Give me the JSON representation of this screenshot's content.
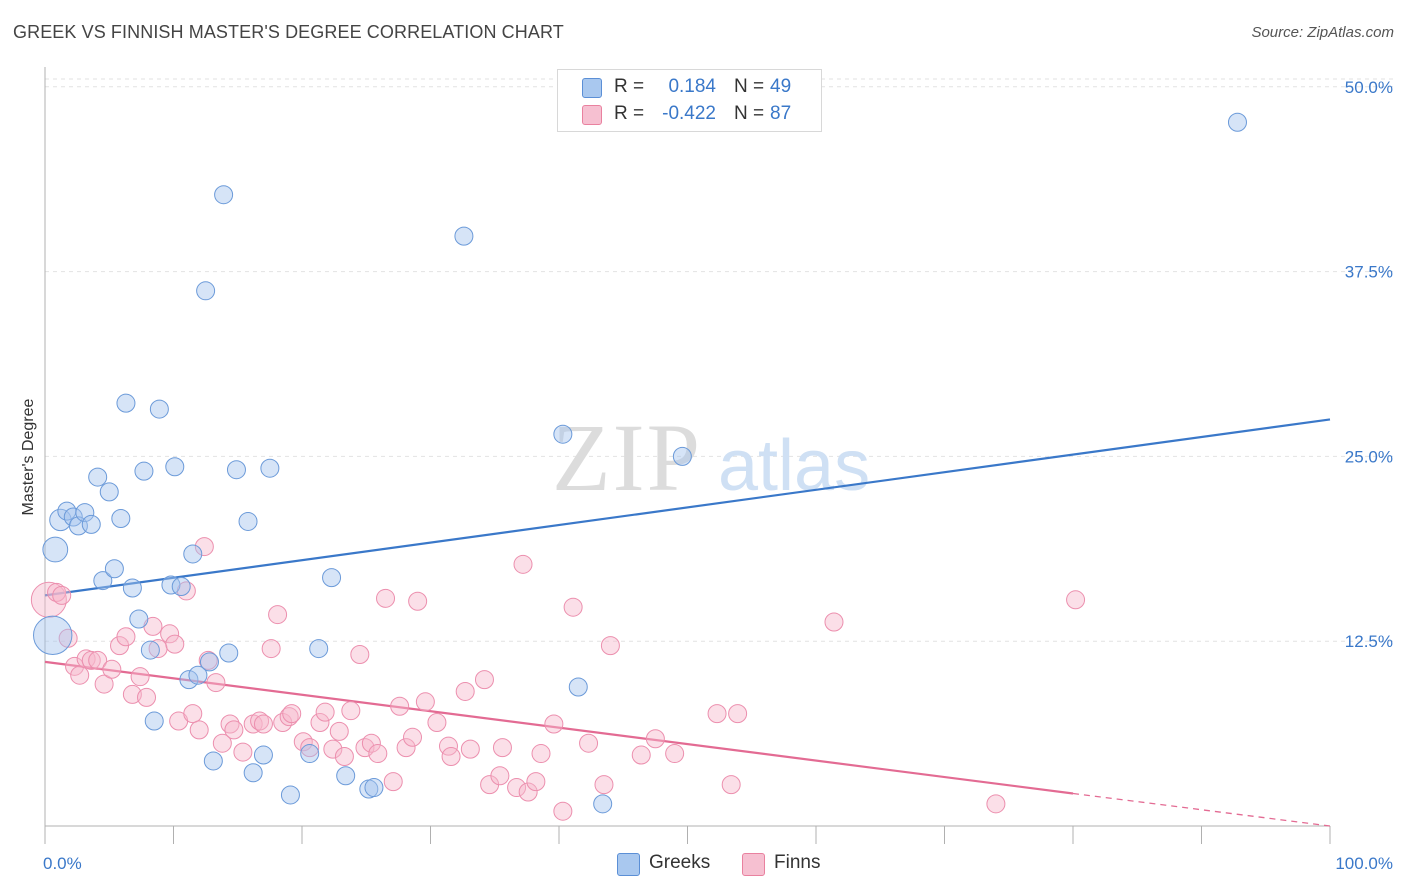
{
  "header": {
    "title": "GREEK VS FINNISH MASTER'S DEGREE CORRELATION CHART",
    "source": "Source: ZipAtlas.com"
  },
  "watermark": {
    "zip": "ZIP",
    "atlas": "atlas"
  },
  "legend_top": {
    "rows": [
      {
        "r_label": "R =",
        "r_value": "0.184",
        "n_label": "N =",
        "n_value": "49",
        "color": "#a9c8ef",
        "border": "#5b8fd6"
      },
      {
        "r_label": "R =",
        "r_value": "-0.422",
        "n_label": "N =",
        "n_value": "87",
        "color": "#f6c0d1",
        "border": "#e9819f"
      }
    ]
  },
  "legend_bottom": [
    {
      "label": "Greeks",
      "color": "#a9c8ef",
      "border": "#5b8fd6"
    },
    {
      "label": "Finns",
      "color": "#f6c0d1",
      "border": "#e9819f"
    }
  ],
  "colors": {
    "blue": "#3a78c9",
    "blue_fill": "rgba(164,196,238,0.45)",
    "blue_stroke": "#6b9ad9",
    "pink": "#e36b93",
    "pink_fill": "rgba(246,184,204,0.45)",
    "pink_stroke": "#ec8fae",
    "tick_label": "#3a78c9"
  },
  "chart_data": {
    "type": "scatter",
    "title": "GREEK VS FINNISH MASTER'S DEGREE CORRELATION CHART",
    "xlabel": "",
    "ylabel": "Master's Degree",
    "xlim": [
      0,
      100
    ],
    "ylim": [
      0,
      51
    ],
    "x_tick_labels": [
      "0.0%",
      "100.0%"
    ],
    "y_ticks": [
      12.5,
      25.0,
      37.5,
      50.0
    ],
    "y_tick_labels": [
      "12.5%",
      "25.0%",
      "37.5%",
      "50.0%"
    ],
    "grid": true,
    "legend_position": "top-center",
    "series": [
      {
        "name": "Greeks",
        "r": 0.184,
        "n": 49,
        "trend": {
          "x": [
            0,
            100
          ],
          "y": [
            15.6,
            27.5
          ],
          "style": "solid"
        },
        "points": [
          [
            0.6,
            12.9,
            22
          ],
          [
            0.8,
            18.7,
            14
          ],
          [
            1.2,
            20.7,
            12
          ],
          [
            1.7,
            21.3,
            10
          ],
          [
            2.2,
            20.9,
            10
          ],
          [
            2.6,
            20.3,
            10
          ],
          [
            3.1,
            21.2,
            10
          ],
          [
            3.6,
            20.4,
            10
          ],
          [
            4.1,
            23.6,
            10
          ],
          [
            4.5,
            16.6,
            10
          ],
          [
            5.0,
            22.6,
            10
          ],
          [
            5.4,
            17.4,
            10
          ],
          [
            5.9,
            20.8,
            10
          ],
          [
            6.3,
            28.6,
            10
          ],
          [
            6.8,
            16.1,
            10
          ],
          [
            7.3,
            14.0,
            10
          ],
          [
            7.7,
            24.0,
            10
          ],
          [
            8.2,
            11.9,
            10
          ],
          [
            8.5,
            7.1,
            10
          ],
          [
            8.9,
            28.2,
            10
          ],
          [
            9.8,
            16.3,
            10
          ],
          [
            10.1,
            24.3,
            10
          ],
          [
            10.6,
            16.2,
            10
          ],
          [
            11.2,
            9.9,
            10
          ],
          [
            11.5,
            18.4,
            10
          ],
          [
            11.9,
            10.2,
            10
          ],
          [
            12.5,
            36.2,
            10
          ],
          [
            12.8,
            11.1,
            10
          ],
          [
            13.1,
            4.4,
            10
          ],
          [
            13.9,
            42.7,
            10
          ],
          [
            14.3,
            11.7,
            10
          ],
          [
            14.9,
            24.1,
            10
          ],
          [
            15.8,
            20.6,
            10
          ],
          [
            16.2,
            3.6,
            10
          ],
          [
            17.0,
            4.8,
            10
          ],
          [
            17.5,
            24.2,
            10
          ],
          [
            19.1,
            2.1,
            10
          ],
          [
            20.6,
            4.9,
            10
          ],
          [
            21.3,
            12.0,
            10
          ],
          [
            22.3,
            16.8,
            10
          ],
          [
            23.4,
            3.4,
            10
          ],
          [
            25.2,
            2.5,
            10
          ],
          [
            25.6,
            2.6,
            10
          ],
          [
            32.6,
            39.9,
            10
          ],
          [
            40.3,
            26.5,
            10
          ],
          [
            41.5,
            9.4,
            10
          ],
          [
            43.4,
            1.5,
            10
          ],
          [
            49.6,
            25.0,
            10
          ],
          [
            92.8,
            47.6,
            10
          ]
        ]
      },
      {
        "name": "Finns",
        "r": -0.422,
        "n": 87,
        "trend": {
          "x": [
            0,
            80,
            100
          ],
          "y": [
            11.1,
            2.2,
            0.0
          ],
          "style": "solid-then-dashed"
        },
        "points": [
          [
            0.3,
            15.3,
            20
          ],
          [
            0.9,
            15.8,
            10
          ],
          [
            1.3,
            15.6,
            10
          ],
          [
            1.8,
            12.7,
            10
          ],
          [
            2.3,
            10.8,
            10
          ],
          [
            2.7,
            10.2,
            10
          ],
          [
            3.2,
            11.3,
            10
          ],
          [
            3.6,
            11.2,
            10
          ],
          [
            4.1,
            11.2,
            10
          ],
          [
            4.6,
            9.6,
            10
          ],
          [
            5.2,
            10.6,
            10
          ],
          [
            5.8,
            12.2,
            10
          ],
          [
            6.3,
            12.8,
            10
          ],
          [
            6.8,
            8.9,
            10
          ],
          [
            7.4,
            10.1,
            10
          ],
          [
            7.9,
            8.7,
            10
          ],
          [
            8.4,
            13.5,
            10
          ],
          [
            8.8,
            12.0,
            10
          ],
          [
            9.7,
            13.0,
            10
          ],
          [
            10.1,
            12.3,
            10
          ],
          [
            10.4,
            7.1,
            10
          ],
          [
            11.0,
            15.9,
            10
          ],
          [
            11.5,
            7.6,
            10
          ],
          [
            12.0,
            6.5,
            10
          ],
          [
            12.4,
            18.9,
            10
          ],
          [
            12.7,
            11.2,
            10
          ],
          [
            13.3,
            9.7,
            10
          ],
          [
            13.8,
            5.6,
            10
          ],
          [
            14.4,
            6.9,
            10
          ],
          [
            14.7,
            6.5,
            10
          ],
          [
            15.4,
            5.0,
            10
          ],
          [
            16.2,
            6.9,
            10
          ],
          [
            16.7,
            7.1,
            10
          ],
          [
            17.0,
            6.9,
            10
          ],
          [
            17.6,
            12.0,
            10
          ],
          [
            18.1,
            14.3,
            10
          ],
          [
            18.5,
            7.0,
            10
          ],
          [
            19.0,
            7.4,
            10
          ],
          [
            19.2,
            7.6,
            10
          ],
          [
            20.1,
            5.7,
            10
          ],
          [
            20.6,
            5.3,
            10
          ],
          [
            21.4,
            7.0,
            10
          ],
          [
            21.8,
            7.7,
            10
          ],
          [
            22.4,
            5.2,
            10
          ],
          [
            22.9,
            6.4,
            10
          ],
          [
            23.3,
            4.7,
            10
          ],
          [
            23.8,
            7.8,
            10
          ],
          [
            24.5,
            11.6,
            10
          ],
          [
            24.9,
            5.3,
            10
          ],
          [
            25.4,
            5.6,
            10
          ],
          [
            25.9,
            4.9,
            10
          ],
          [
            26.5,
            15.4,
            10
          ],
          [
            27.1,
            3.0,
            10
          ],
          [
            27.6,
            8.1,
            10
          ],
          [
            28.1,
            5.3,
            10
          ],
          [
            28.6,
            6.0,
            10
          ],
          [
            29.0,
            15.2,
            10
          ],
          [
            29.6,
            8.4,
            10
          ],
          [
            30.5,
            7.0,
            10
          ],
          [
            31.4,
            5.4,
            10
          ],
          [
            31.6,
            4.7,
            10
          ],
          [
            32.7,
            9.1,
            10
          ],
          [
            33.1,
            5.2,
            10
          ],
          [
            34.2,
            9.9,
            10
          ],
          [
            34.6,
            2.8,
            10
          ],
          [
            35.4,
            3.4,
            10
          ],
          [
            35.6,
            5.3,
            10
          ],
          [
            36.7,
            2.6,
            10
          ],
          [
            37.2,
            17.7,
            10
          ],
          [
            37.6,
            2.3,
            10
          ],
          [
            38.2,
            3.0,
            10
          ],
          [
            38.6,
            4.9,
            10
          ],
          [
            39.6,
            6.9,
            10
          ],
          [
            40.3,
            1.0,
            10
          ],
          [
            41.1,
            14.8,
            10
          ],
          [
            42.3,
            5.6,
            10
          ],
          [
            43.5,
            2.8,
            10
          ],
          [
            44.0,
            12.2,
            10
          ],
          [
            46.4,
            4.8,
            10
          ],
          [
            47.5,
            5.9,
            10
          ],
          [
            49.0,
            4.9,
            10
          ],
          [
            52.3,
            7.6,
            10
          ],
          [
            53.4,
            2.8,
            10
          ],
          [
            53.9,
            7.6,
            10
          ],
          [
            61.4,
            13.8,
            10
          ],
          [
            74.0,
            1.5,
            10
          ],
          [
            80.2,
            15.3,
            10
          ]
        ]
      }
    ]
  }
}
